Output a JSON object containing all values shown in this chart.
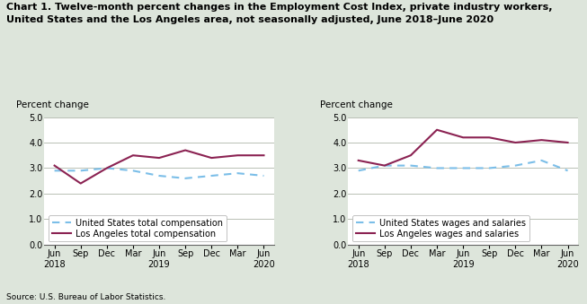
{
  "title_line1": "Chart 1. Twelve-month percent changes in the Employment Cost Index, private industry workers,",
  "title_line2": "United States and the Los Angeles area, not seasonally adjusted, June 2018–June 2020",
  "ylabel": "Percent change",
  "ylim": [
    0.0,
    5.0
  ],
  "yticks": [
    0.0,
    1.0,
    2.0,
    3.0,
    4.0,
    5.0
  ],
  "source": "Source: U.S. Bureau of Labor Statistics.",
  "left_us_total": [
    2.9,
    2.9,
    3.0,
    2.9,
    2.7,
    2.6,
    2.7,
    2.8,
    2.7
  ],
  "left_la_total": [
    3.1,
    2.4,
    3.0,
    3.5,
    3.4,
    3.7,
    3.4,
    3.5,
    3.5
  ],
  "right_us_wages": [
    2.9,
    3.1,
    3.1,
    3.0,
    3.0,
    3.0,
    3.1,
    3.3,
    2.9
  ],
  "right_la_wages": [
    3.3,
    3.1,
    3.5,
    4.5,
    4.2,
    4.2,
    4.0,
    4.1,
    4.0
  ],
  "us_color": "#7bbee8",
  "la_color": "#8b2252",
  "us_linestyle": "dashed",
  "la_linestyle": "solid",
  "linewidth": 1.5,
  "left_legend_us": "United States total compensation",
  "left_legend_la": "Los Angeles total compensation",
  "right_legend_us": "United States wages and salaries",
  "right_legend_la": "Los Angeles wages and salaries",
  "bg_color": "#dde5db",
  "plot_bg_color": "#ffffff",
  "title_fontsize": 8.0,
  "label_fontsize": 7.5,
  "tick_fontsize": 7.0,
  "legend_fontsize": 7.0,
  "source_fontsize": 6.5
}
